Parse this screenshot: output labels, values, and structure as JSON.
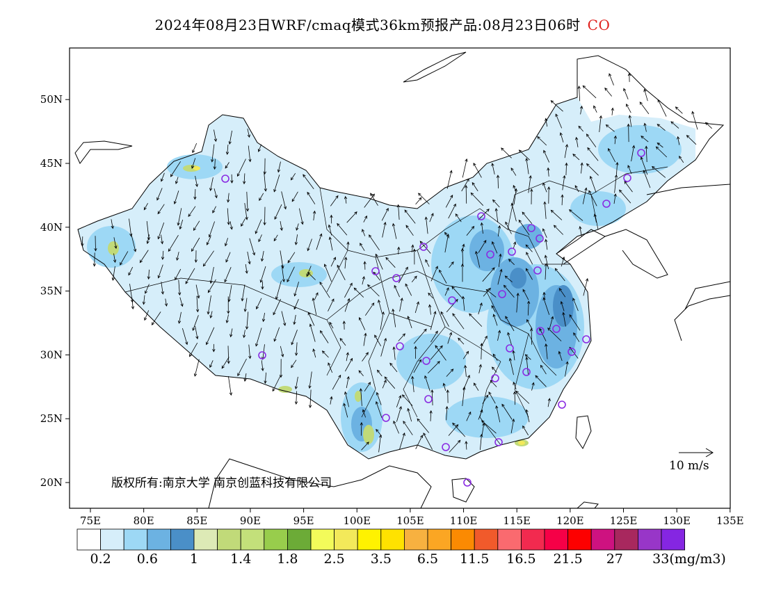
{
  "title": "2024年08月23日WRF/cmaq模式36km预报产品:08月23日06时",
  "species": "CO",
  "species_color": "#e0201c",
  "axes": {
    "lon_ticks": [
      "75E",
      "80E",
      "85E",
      "90E",
      "95E",
      "100E",
      "105E",
      "110E",
      "115E",
      "120E",
      "125E",
      "130E",
      "135E"
    ],
    "lat_ticks": [
      "20N",
      "25N",
      "30N",
      "35N",
      "40N",
      "45N",
      "50N"
    ]
  },
  "colorbar": {
    "colors": [
      "#ffffff",
      "#d6eefa",
      "#9dd8f5",
      "#6cb2e2",
      "#4a8fc8",
      "#ddeab6",
      "#c1da79",
      "#c3e07a",
      "#98cd4c",
      "#6cab37",
      "#f3fb5a",
      "#f3e95a",
      "#fff200",
      "#ffe200",
      "#f7b140",
      "#fba623",
      "#fb8a02",
      "#f15a2b",
      "#fa6a6f",
      "#f22a4f",
      "#f60047",
      "#fd0000",
      "#ce1280",
      "#a8285e",
      "#9836c8",
      "#8526e2"
    ],
    "labels": [
      "0.2",
      "0.6",
      "1",
      "1.4",
      "1.8",
      "2.5",
      "3.5",
      "6.5",
      "11.5",
      "16.5",
      "21.5",
      "27",
      "33(mg/m3)"
    ]
  },
  "copyright": "版权所有:南京大学 南京创蓝科技有限公司",
  "wind_reference": "10 m/s",
  "station_marker_color": "#8a2be2"
}
